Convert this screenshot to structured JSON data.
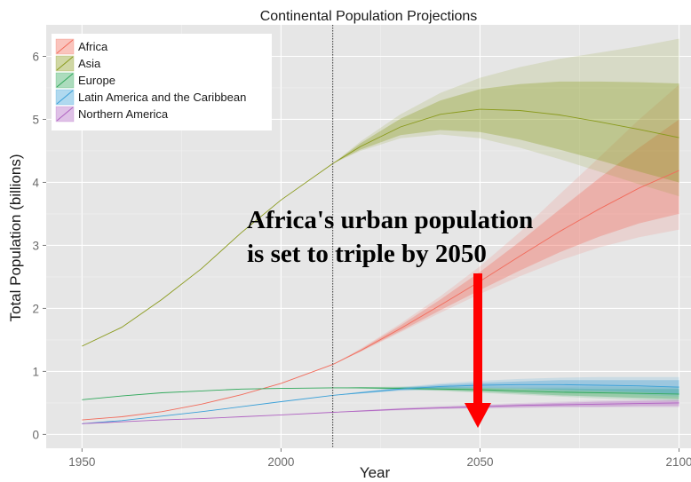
{
  "chart_data": {
    "type": "line",
    "title": "Continental Population Projections",
    "xlabel": "Year",
    "ylabel": "Total Population (billions)",
    "xlim": [
      1941,
      2103
    ],
    "ylim": [
      -0.22,
      6.5
    ],
    "xticks": [
      1950,
      2000,
      2050,
      2100
    ],
    "yticks": [
      0,
      1,
      2,
      3,
      4,
      5,
      6
    ],
    "grid": true,
    "legend_position": "top-left",
    "projection_start_year": 2013,
    "annotation": [
      "Africa's urban population",
      "is set to triple by 2050"
    ],
    "series": [
      {
        "name": "Africa",
        "color": "#f26b5b",
        "x": [
          1950,
          1960,
          1970,
          1980,
          1990,
          2000,
          2013,
          2020,
          2030,
          2040,
          2050,
          2060,
          2070,
          2080,
          2090,
          2100
        ],
        "values": [
          0.23,
          0.28,
          0.36,
          0.48,
          0.63,
          0.81,
          1.11,
          1.33,
          1.68,
          2.05,
          2.43,
          2.83,
          3.22,
          3.58,
          3.91,
          4.19
        ],
        "band80_lower": [
          null,
          null,
          null,
          null,
          null,
          null,
          1.11,
          1.32,
          1.64,
          1.97,
          2.29,
          2.6,
          2.89,
          3.14,
          3.35,
          3.5
        ],
        "band80_upper": [
          null,
          null,
          null,
          null,
          null,
          null,
          1.11,
          1.35,
          1.73,
          2.14,
          2.58,
          3.06,
          3.57,
          4.07,
          4.55,
          5.0
        ],
        "band95_lower": [
          null,
          null,
          null,
          null,
          null,
          null,
          1.11,
          1.31,
          1.62,
          1.93,
          2.23,
          2.51,
          2.76,
          2.97,
          3.13,
          3.25
        ],
        "band95_upper": [
          null,
          null,
          null,
          null,
          null,
          null,
          1.11,
          1.36,
          1.76,
          2.19,
          2.67,
          3.21,
          3.81,
          4.4,
          5.0,
          5.55
        ]
      },
      {
        "name": "Asia",
        "color": "#8a9a1c",
        "x": [
          1950,
          1960,
          1970,
          1980,
          1990,
          2000,
          2013,
          2020,
          2030,
          2040,
          2050,
          2060,
          2070,
          2080,
          2090,
          2100
        ],
        "values": [
          1.4,
          1.7,
          2.14,
          2.63,
          3.2,
          3.72,
          4.3,
          4.57,
          4.88,
          5.08,
          5.16,
          5.14,
          5.07,
          4.96,
          4.84,
          4.71
        ],
        "band80_lower": [
          null,
          null,
          null,
          null,
          null,
          null,
          4.3,
          4.52,
          4.75,
          4.83,
          4.8,
          4.68,
          4.52,
          4.35,
          4.17,
          4.0
        ],
        "band80_upper": [
          null,
          null,
          null,
          null,
          null,
          null,
          4.3,
          4.62,
          5.01,
          5.3,
          5.48,
          5.56,
          5.6,
          5.6,
          5.59,
          5.57
        ],
        "band95_lower": [
          null,
          null,
          null,
          null,
          null,
          null,
          4.3,
          4.5,
          4.7,
          4.76,
          4.7,
          4.55,
          4.37,
          4.17,
          3.97,
          3.78
        ],
        "band95_upper": [
          null,
          null,
          null,
          null,
          null,
          null,
          4.3,
          4.65,
          5.08,
          5.42,
          5.66,
          5.83,
          5.96,
          6.06,
          6.16,
          6.28
        ]
      },
      {
        "name": "Europe",
        "color": "#2fa85a",
        "x": [
          1950,
          1960,
          1970,
          1980,
          1990,
          2000,
          2013,
          2020,
          2030,
          2040,
          2050,
          2060,
          2070,
          2080,
          2090,
          2100
        ],
        "values": [
          0.55,
          0.61,
          0.66,
          0.69,
          0.72,
          0.73,
          0.74,
          0.74,
          0.73,
          0.72,
          0.71,
          0.69,
          0.67,
          0.66,
          0.65,
          0.64
        ],
        "band80_lower": [
          null,
          null,
          null,
          null,
          null,
          null,
          0.74,
          0.73,
          0.72,
          0.7,
          0.68,
          0.65,
          0.62,
          0.6,
          0.58,
          0.56
        ],
        "band80_upper": [
          null,
          null,
          null,
          null,
          null,
          null,
          0.74,
          0.75,
          0.75,
          0.75,
          0.74,
          0.73,
          0.73,
          0.72,
          0.72,
          0.72
        ],
        "band95_lower": [
          null,
          null,
          null,
          null,
          null,
          null,
          0.74,
          0.73,
          0.71,
          0.69,
          0.66,
          0.63,
          0.6,
          0.57,
          0.55,
          0.53
        ],
        "band95_upper": [
          null,
          null,
          null,
          null,
          null,
          null,
          0.74,
          0.75,
          0.76,
          0.76,
          0.76,
          0.76,
          0.76,
          0.76,
          0.76,
          0.76
        ]
      },
      {
        "name": "Latin America and the Caribbean",
        "color": "#3aa0d8",
        "x": [
          1950,
          1960,
          1970,
          1980,
          1990,
          2000,
          2013,
          2020,
          2030,
          2040,
          2050,
          2060,
          2070,
          2080,
          2090,
          2100
        ],
        "values": [
          0.17,
          0.22,
          0.29,
          0.36,
          0.44,
          0.52,
          0.62,
          0.66,
          0.72,
          0.76,
          0.78,
          0.79,
          0.79,
          0.78,
          0.77,
          0.75
        ],
        "band80_lower": [
          null,
          null,
          null,
          null,
          null,
          null,
          0.62,
          0.65,
          0.7,
          0.73,
          0.74,
          0.73,
          0.71,
          0.69,
          0.67,
          0.64
        ],
        "band80_upper": [
          null,
          null,
          null,
          null,
          null,
          null,
          0.62,
          0.67,
          0.74,
          0.79,
          0.82,
          0.84,
          0.86,
          0.86,
          0.86,
          0.86
        ],
        "band95_lower": [
          null,
          null,
          null,
          null,
          null,
          null,
          0.62,
          0.65,
          0.69,
          0.71,
          0.72,
          0.71,
          0.68,
          0.66,
          0.63,
          0.6
        ],
        "band95_upper": [
          null,
          null,
          null,
          null,
          null,
          null,
          0.62,
          0.68,
          0.75,
          0.81,
          0.85,
          0.88,
          0.9,
          0.91,
          0.91,
          0.91
        ]
      },
      {
        "name": "Northern America",
        "color": "#b063c2",
        "x": [
          1950,
          1960,
          1970,
          1980,
          1990,
          2000,
          2013,
          2020,
          2030,
          2040,
          2050,
          2060,
          2070,
          2080,
          2090,
          2100
        ],
        "values": [
          0.17,
          0.2,
          0.23,
          0.25,
          0.28,
          0.31,
          0.35,
          0.37,
          0.4,
          0.42,
          0.44,
          0.46,
          0.47,
          0.48,
          0.49,
          0.5
        ],
        "band80_lower": [
          null,
          null,
          null,
          null,
          null,
          null,
          0.35,
          0.36,
          0.39,
          0.41,
          0.42,
          0.43,
          0.44,
          0.44,
          0.45,
          0.45
        ],
        "band80_upper": [
          null,
          null,
          null,
          null,
          null,
          null,
          0.35,
          0.38,
          0.41,
          0.44,
          0.46,
          0.48,
          0.5,
          0.52,
          0.53,
          0.54
        ],
        "band95_lower": [
          null,
          null,
          null,
          null,
          null,
          null,
          0.35,
          0.36,
          0.38,
          0.4,
          0.41,
          0.42,
          0.43,
          0.43,
          0.43,
          0.43
        ],
        "band95_upper": [
          null,
          null,
          null,
          null,
          null,
          null,
          0.35,
          0.38,
          0.42,
          0.45,
          0.47,
          0.5,
          0.52,
          0.54,
          0.55,
          0.56
        ]
      }
    ]
  }
}
